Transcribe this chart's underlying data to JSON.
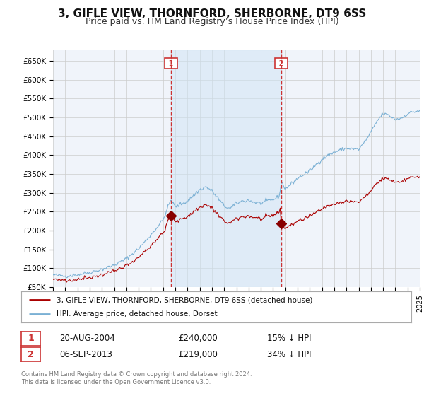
{
  "title": "3, GIFLE VIEW, THORNFORD, SHERBORNE, DT9 6SS",
  "subtitle": "Price paid vs. HM Land Registry’s House Price Index (HPI)",
  "title_fontsize": 11,
  "subtitle_fontsize": 9,
  "background_color": "#ffffff",
  "grid_color": "#cccccc",
  "plot_bg": "#f0f4fa",
  "ylim": [
    50000,
    680000
  ],
  "yticks": [
    50000,
    100000,
    150000,
    200000,
    250000,
    300000,
    350000,
    400000,
    450000,
    500000,
    550000,
    600000,
    650000
  ],
  "ytick_labels": [
    "£50K",
    "£100K",
    "£150K",
    "£200K",
    "£250K",
    "£300K",
    "£350K",
    "£400K",
    "£450K",
    "£500K",
    "£550K",
    "£600K",
    "£650K"
  ],
  "sale1_date": 2004.64,
  "sale1_price": 240000,
  "sale1_label": "1",
  "sale2_date": 2013.68,
  "sale2_price": 219000,
  "sale2_label": "2",
  "red_line_color": "#aa0000",
  "blue_line_color": "#7ab0d4",
  "blue_fill_color": "#d0e4f5",
  "marker_color": "#880000",
  "dashed_line_color": "#cc3333",
  "legend_label_red": "3, GIFLE VIEW, THORNFORD, SHERBORNE, DT9 6SS (detached house)",
  "legend_label_blue": "HPI: Average price, detached house, Dorset",
  "table_row1": [
    "1",
    "20-AUG-2004",
    "£240,000",
    "15% ↓ HPI"
  ],
  "table_row2": [
    "2",
    "06-SEP-2013",
    "£219,000",
    "34% ↓ HPI"
  ],
  "footnote": "Contains HM Land Registry data © Crown copyright and database right 2024.\nThis data is licensed under the Open Government Licence v3.0.",
  "xmin": 1995,
  "xmax": 2025
}
